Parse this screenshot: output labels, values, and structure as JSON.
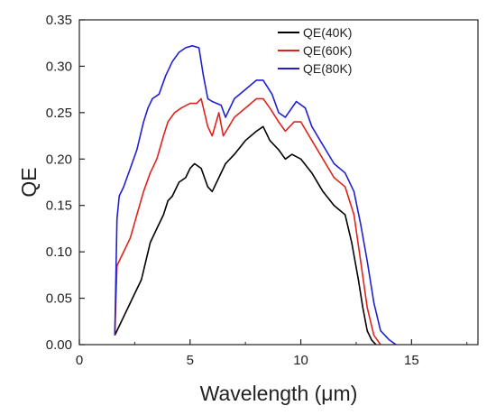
{
  "chart_data": {
    "type": "line",
    "title": "",
    "xlabel": "Wavelength (μm)",
    "ylabel": "QE",
    "xlim": [
      0,
      18
    ],
    "ylim": [
      0,
      0.35
    ],
    "x_ticks": [
      0,
      5,
      10,
      15
    ],
    "y_ticks": [
      0.0,
      0.05,
      0.1,
      0.15,
      0.2,
      0.25,
      0.3,
      0.35
    ],
    "x_tick_labels": [
      "0",
      "5",
      "10",
      "15"
    ],
    "y_tick_labels": [
      "0.00",
      "0.05",
      "0.10",
      "0.15",
      "0.20",
      "0.25",
      "0.30",
      "0.35"
    ],
    "grid": false,
    "legend_position": "top-right",
    "series": [
      {
        "name": "QE(40K)",
        "color": "#000000",
        "x": [
          1.6,
          1.7,
          1.8,
          2.0,
          2.2,
          2.5,
          2.8,
          3.0,
          3.2,
          3.5,
          3.8,
          4.0,
          4.2,
          4.5,
          4.8,
          5.0,
          5.2,
          5.5,
          5.8,
          6.0,
          6.3,
          6.6,
          7.0,
          7.5,
          8.0,
          8.3,
          8.6,
          9.0,
          9.3,
          9.6,
          10.0,
          10.5,
          11.0,
          11.5,
          12.0,
          12.3,
          12.6,
          12.8,
          13.0,
          13.2,
          13.4
        ],
        "y": [
          0.01,
          0.015,
          0.02,
          0.03,
          0.04,
          0.055,
          0.07,
          0.09,
          0.11,
          0.125,
          0.14,
          0.155,
          0.16,
          0.175,
          0.18,
          0.19,
          0.195,
          0.19,
          0.17,
          0.165,
          0.18,
          0.195,
          0.205,
          0.22,
          0.23,
          0.235,
          0.22,
          0.21,
          0.2,
          0.205,
          0.2,
          0.185,
          0.165,
          0.15,
          0.14,
          0.11,
          0.07,
          0.04,
          0.015,
          0.005,
          0.0
        ]
      },
      {
        "name": "QE(60K)",
        "color": "#e0231d",
        "x": [
          1.6,
          1.7,
          1.8,
          2.0,
          2.3,
          2.6,
          2.9,
          3.2,
          3.5,
          3.8,
          4.0,
          4.3,
          4.6,
          5.0,
          5.3,
          5.5,
          5.8,
          6.0,
          6.3,
          6.5,
          7.0,
          7.5,
          8.0,
          8.3,
          8.6,
          9.0,
          9.3,
          9.7,
          10.0,
          10.5,
          11.0,
          11.5,
          12.0,
          12.4,
          12.7,
          13.0,
          13.3,
          13.6
        ],
        "y": [
          0.01,
          0.085,
          0.09,
          0.1,
          0.115,
          0.14,
          0.165,
          0.185,
          0.2,
          0.225,
          0.24,
          0.25,
          0.255,
          0.26,
          0.26,
          0.265,
          0.235,
          0.225,
          0.25,
          0.225,
          0.245,
          0.255,
          0.265,
          0.265,
          0.255,
          0.24,
          0.23,
          0.24,
          0.24,
          0.22,
          0.2,
          0.18,
          0.17,
          0.14,
          0.09,
          0.04,
          0.01,
          0.0
        ]
      },
      {
        "name": "QE(80K)",
        "color": "#2020d0",
        "x": [
          1.6,
          1.7,
          1.8,
          2.0,
          2.3,
          2.6,
          2.9,
          3.1,
          3.3,
          3.6,
          3.9,
          4.2,
          4.5,
          4.8,
          5.1,
          5.4,
          5.6,
          5.8,
          6.0,
          6.4,
          6.6,
          7.0,
          7.5,
          8.0,
          8.3,
          8.7,
          9.0,
          9.3,
          9.8,
          10.2,
          10.5,
          11.0,
          11.5,
          12.0,
          12.4,
          12.7,
          13.0,
          13.3,
          13.6,
          14.0,
          14.3
        ],
        "y": [
          0.01,
          0.135,
          0.16,
          0.17,
          0.19,
          0.21,
          0.24,
          0.255,
          0.265,
          0.27,
          0.29,
          0.305,
          0.315,
          0.32,
          0.322,
          0.32,
          0.29,
          0.265,
          0.262,
          0.258,
          0.245,
          0.265,
          0.275,
          0.285,
          0.285,
          0.27,
          0.25,
          0.245,
          0.262,
          0.255,
          0.235,
          0.215,
          0.195,
          0.185,
          0.165,
          0.13,
          0.09,
          0.045,
          0.015,
          0.005,
          0.0
        ]
      }
    ]
  }
}
